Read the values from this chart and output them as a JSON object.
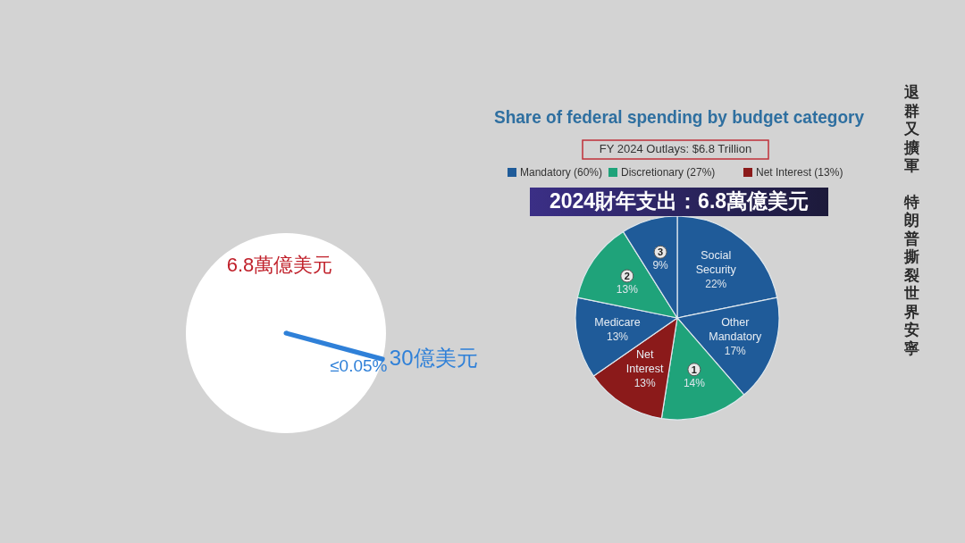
{
  "chart_data": [
    {
      "type": "pie",
      "categories": [
        "6.8萬億美元",
        "30億美元"
      ],
      "values": [
        99.95,
        0.05
      ],
      "colors": [
        "#ffffff",
        "#2f80d8"
      ],
      "value_labels": [
        null,
        "≤0.05%"
      ]
    },
    {
      "type": "pie",
      "title": "Share of federal spending by budget category",
      "subtitle": "FY 2024 Outlays: $6.8 Trillion",
      "categories": [
        "Social Security",
        "Other Mandatory",
        "1",
        "Net Interest",
        "Medicare",
        "2",
        "3"
      ],
      "values": [
        22,
        17,
        14,
        13,
        13,
        13,
        9
      ],
      "colors": [
        "#1f5b99",
        "#1f5b99",
        "#1fa37a",
        "#8b1a1a",
        "#1f5b99",
        "#1fa37a",
        "#1f5b99"
      ],
      "value_labels": [
        "22%",
        "17%",
        "14%",
        "13%",
        "13%",
        "13%",
        "9%"
      ],
      "annotations": [
        "Mandatory (60%)",
        "Discretionary (27%)",
        "Net Interest (13%)",
        "2024財年支出：6.8萬億美元",
        "退群又擴軍",
        "特朗普撕裂世界安寧"
      ]
    }
  ]
}
